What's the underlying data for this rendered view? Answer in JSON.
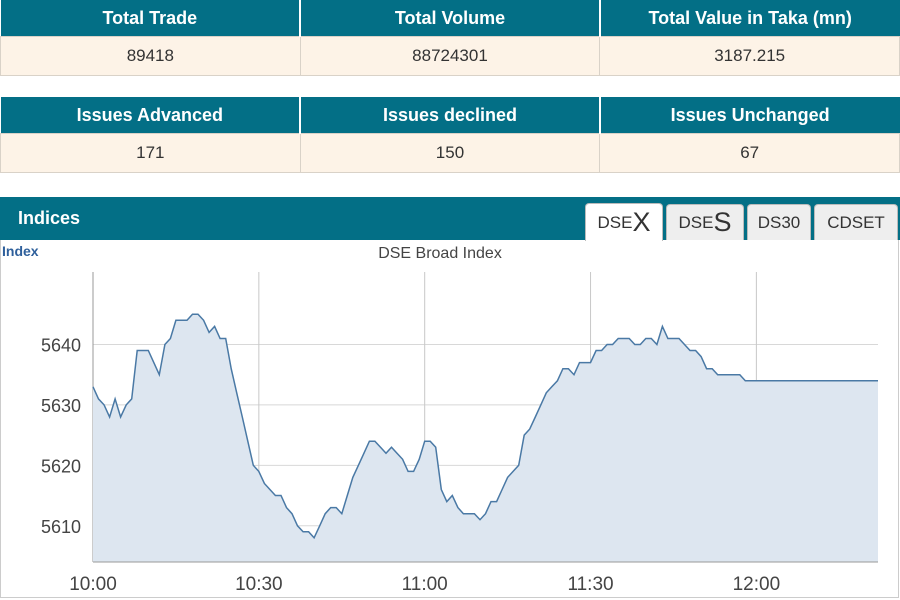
{
  "stats_row1": {
    "headers": [
      "Total Trade",
      "Total Volume",
      "Total Value in Taka (mn)"
    ],
    "values": [
      "89418",
      "88724301",
      "3187.215"
    ]
  },
  "stats_row2": {
    "headers": [
      "Issues Advanced",
      "Issues declined",
      "Issues Unchanged"
    ],
    "values": [
      "171",
      "150",
      "67"
    ]
  },
  "indices": {
    "title": "Indices",
    "tabs": [
      {
        "prefix": "DSE",
        "big": "X",
        "active": true
      },
      {
        "prefix": "DSE",
        "big": "S",
        "active": false
      },
      {
        "prefix": "DS30",
        "big": "",
        "active": false
      },
      {
        "prefix": "CDSET",
        "big": "",
        "active": false
      }
    ]
  },
  "colors": {
    "header_bg": "#036f86",
    "row_bg": "#fdf3e7",
    "line": "#4a79a5",
    "fill": "#dde6f0"
  },
  "chart_data": {
    "type": "area",
    "title": "DSE Broad Index",
    "ylabel": "Index",
    "xlabel": "",
    "x_ticks": [
      "10:00",
      "10:30",
      "11:00",
      "11:30",
      "12:00"
    ],
    "y_ticks": [
      5610,
      5620,
      5630,
      5640
    ],
    "ylim": [
      5604,
      5652
    ],
    "xlim_minutes": [
      0,
      142
    ],
    "grid": true,
    "x_minutes": [
      0,
      1,
      2,
      3,
      4,
      5,
      6,
      7,
      8,
      9,
      10,
      11,
      12,
      13,
      14,
      15,
      16,
      17,
      18,
      19,
      20,
      21,
      22,
      23,
      24,
      25,
      26,
      27,
      28,
      29,
      30,
      31,
      32,
      33,
      34,
      35,
      36,
      37,
      38,
      39,
      40,
      41,
      42,
      43,
      44,
      45,
      46,
      47,
      48,
      49,
      50,
      51,
      52,
      53,
      54,
      55,
      56,
      57,
      58,
      59,
      60,
      61,
      62,
      63,
      64,
      65,
      66,
      67,
      68,
      69,
      70,
      71,
      72,
      73,
      74,
      75,
      76,
      77,
      78,
      79,
      80,
      81,
      82,
      83,
      84,
      85,
      86,
      87,
      88,
      89,
      90,
      91,
      92,
      93,
      94,
      95,
      96,
      97,
      98,
      99,
      100,
      101,
      102,
      103,
      104,
      105,
      106,
      107,
      108,
      109,
      110,
      111,
      112,
      113,
      114,
      115,
      116,
      117,
      118,
      119,
      120,
      121,
      122,
      123,
      124,
      125,
      126,
      127,
      128,
      129,
      130,
      131,
      132,
      133,
      134,
      135,
      136,
      137,
      138,
      139,
      140,
      141,
      142
    ],
    "values": [
      5633,
      5631,
      5630,
      5628,
      5631,
      5628,
      5630,
      5631,
      5639,
      5639,
      5639,
      5637,
      5635,
      5640,
      5641,
      5644,
      5644,
      5644,
      5645,
      5645,
      5644,
      5642,
      5643,
      5641,
      5641,
      5636,
      5632,
      5628,
      5624,
      5620,
      5619,
      5617,
      5616,
      5615,
      5615,
      5613,
      5612,
      5610,
      5609,
      5609,
      5608,
      5610,
      5612,
      5613,
      5613,
      5612,
      5615,
      5618,
      5620,
      5622,
      5624,
      5624,
      5623,
      5622,
      5623,
      5622,
      5621,
      5619,
      5619,
      5621,
      5624,
      5624,
      5623,
      5616,
      5614,
      5615,
      5613,
      5612,
      5612,
      5612,
      5611,
      5612,
      5614,
      5614,
      5616,
      5618,
      5619,
      5620,
      5625,
      5626,
      5628,
      5630,
      5632,
      5633,
      5634,
      5636,
      5636,
      5635,
      5637,
      5637,
      5637,
      5639,
      5639,
      5640,
      5640,
      5641,
      5641,
      5641,
      5640,
      5640,
      5641,
      5641,
      5640,
      5643,
      5641,
      5641,
      5641,
      5640,
      5639,
      5639,
      5638,
      5636,
      5636,
      5635,
      5635,
      5635,
      5635,
      5635,
      5634,
      5634,
      5634,
      5634,
      5634,
      5634,
      5634,
      5634,
      5634,
      5634,
      5634,
      5634,
      5634,
      5634,
      5634,
      5634,
      5634,
      5634,
      5634,
      5634,
      5634,
      5634,
      5634,
      5634,
      5634
    ]
  }
}
